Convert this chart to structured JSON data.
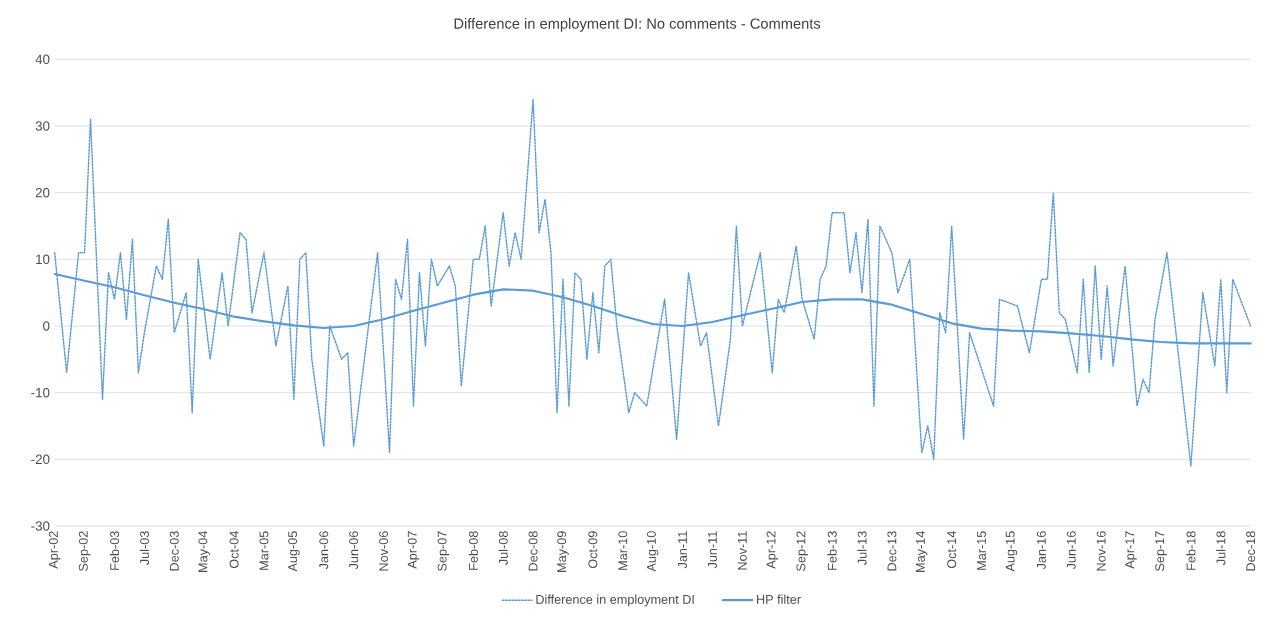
{
  "chart_data": {
    "type": "line",
    "title": "Difference in employment  DI: No comments - Comments",
    "xlim": [
      "2002-04",
      "2018-12"
    ],
    "ylim": [
      -30,
      40
    ],
    "yticks": [
      -30,
      -20,
      -10,
      0,
      10,
      20,
      30,
      40
    ],
    "xticks": [
      {
        "value": "2002-04",
        "label": "Apr-02"
      },
      {
        "value": "2002-09",
        "label": "Sep-02"
      },
      {
        "value": "2003-02",
        "label": "Feb-03"
      },
      {
        "value": "2003-07",
        "label": "Jul-03"
      },
      {
        "value": "2003-12",
        "label": "Dec-03"
      },
      {
        "value": "2004-05",
        "label": "May-04"
      },
      {
        "value": "2004-10",
        "label": "Oct-04"
      },
      {
        "value": "2005-03",
        "label": "Mar-05"
      },
      {
        "value": "2005-08",
        "label": "Aug-05"
      },
      {
        "value": "2006-01",
        "label": "Jan-06"
      },
      {
        "value": "2006-06",
        "label": "Jun-06"
      },
      {
        "value": "2006-11",
        "label": "Nov-06"
      },
      {
        "value": "2007-04",
        "label": "Apr-07"
      },
      {
        "value": "2007-09",
        "label": "Sep-07"
      },
      {
        "value": "2008-02",
        "label": "Feb-08"
      },
      {
        "value": "2008-07",
        "label": "Jul-08"
      },
      {
        "value": "2008-12",
        "label": "Dec-08"
      },
      {
        "value": "2009-05",
        "label": "May-09"
      },
      {
        "value": "2009-10",
        "label": "Oct-09"
      },
      {
        "value": "2010-03",
        "label": "Mar-10"
      },
      {
        "value": "2010-08",
        "label": "Aug-10"
      },
      {
        "value": "2011-01",
        "label": "Jan-11"
      },
      {
        "value": "2011-06",
        "label": "Jun-11"
      },
      {
        "value": "2011-11",
        "label": "Nov-11"
      },
      {
        "value": "2012-04",
        "label": "Apr-12"
      },
      {
        "value": "2012-09",
        "label": "Sep-12"
      },
      {
        "value": "2013-02",
        "label": "Feb-13"
      },
      {
        "value": "2013-07",
        "label": "Jul-13"
      },
      {
        "value": "2013-12",
        "label": "Dec-13"
      },
      {
        "value": "2014-05",
        "label": "May-14"
      },
      {
        "value": "2014-10",
        "label": "Oct-14"
      },
      {
        "value": "2015-03",
        "label": "Mar-15"
      },
      {
        "value": "2015-08",
        "label": "Aug-15"
      },
      {
        "value": "2016-01",
        "label": "Jan-16"
      },
      {
        "value": "2016-06",
        "label": "Jun-16"
      },
      {
        "value": "2016-11",
        "label": "Nov-16"
      },
      {
        "value": "2017-04",
        "label": "Apr-17"
      },
      {
        "value": "2017-09",
        "label": "Sep-17"
      },
      {
        "value": "2018-02",
        "label": "Feb-18"
      },
      {
        "value": "2018-07",
        "label": "Jul-18"
      },
      {
        "value": "2018-12",
        "label": "Dec-18"
      }
    ],
    "grid": "y",
    "legend": "bottom",
    "marker": "none",
    "series": [
      {
        "name": "Difference in employment DI",
        "color": "#5b9bd5",
        "line_style": "dotted",
        "x": [
          "2002-04",
          "2002-06",
          "2002-08",
          "2002-09",
          "2002-10",
          "2002-12",
          "2003-01",
          "2003-02",
          "2003-03",
          "2003-04",
          "2003-05",
          "2003-06",
          "2003-07",
          "2003-09",
          "2003-10",
          "2003-11",
          "2003-12",
          "2004-02",
          "2004-03",
          "2004-04",
          "2004-06",
          "2004-08",
          "2004-09",
          "2004-11",
          "2004-12",
          "2005-01",
          "2005-03",
          "2005-05",
          "2005-07",
          "2005-08",
          "2005-09",
          "2005-10",
          "2005-11",
          "2006-01",
          "2006-02",
          "2006-04",
          "2006-05",
          "2006-06",
          "2006-10",
          "2006-12",
          "2007-01",
          "2007-02",
          "2007-03",
          "2007-04",
          "2007-05",
          "2007-06",
          "2007-07",
          "2007-08",
          "2007-10",
          "2007-11",
          "2007-12",
          "2008-02",
          "2008-03",
          "2008-04",
          "2008-05",
          "2008-07",
          "2008-08",
          "2008-09",
          "2008-10",
          "2008-12",
          "2009-01",
          "2009-02",
          "2009-03",
          "2009-04",
          "2009-05",
          "2009-06",
          "2009-07",
          "2009-08",
          "2009-09",
          "2009-10",
          "2009-11",
          "2009-12",
          "2010-01",
          "2010-02",
          "2010-04",
          "2010-05",
          "2010-07",
          "2010-10",
          "2010-12",
          "2011-02",
          "2011-04",
          "2011-05",
          "2011-07",
          "2011-09",
          "2011-10",
          "2011-11",
          "2012-02",
          "2012-04",
          "2012-05",
          "2012-06",
          "2012-08",
          "2012-09",
          "2012-11",
          "2012-12",
          "2013-01",
          "2013-02",
          "2013-04",
          "2013-05",
          "2013-06",
          "2013-07",
          "2013-08",
          "2013-09",
          "2013-10",
          "2013-12",
          "2014-01",
          "2014-03",
          "2014-05",
          "2014-06",
          "2014-07",
          "2014-08",
          "2014-09",
          "2014-10",
          "2014-12",
          "2015-01",
          "2015-05",
          "2015-06",
          "2015-09",
          "2015-11",
          "2016-01",
          "2016-02",
          "2016-03",
          "2016-04",
          "2016-05",
          "2016-07",
          "2016-08",
          "2016-09",
          "2016-10",
          "2016-11",
          "2016-12",
          "2017-01",
          "2017-03",
          "2017-05",
          "2017-06",
          "2017-07",
          "2017-08",
          "2017-10",
          "2018-02",
          "2018-04",
          "2018-06",
          "2018-07",
          "2018-08",
          "2018-09",
          "2018-12"
        ],
        "values": [
          11,
          -7,
          11,
          11,
          31,
          -11,
          8,
          4,
          11,
          1,
          13,
          -7,
          -1,
          9,
          7,
          16,
          -1,
          5,
          -13,
          10,
          -5,
          8,
          0,
          14,
          13,
          2,
          11,
          -3,
          6,
          -11,
          10,
          11,
          -5,
          -18,
          0,
          -5,
          -4,
          -18,
          11,
          -19,
          7,
          4,
          13,
          -12,
          8,
          -3,
          10,
          6,
          9,
          6,
          -9,
          10,
          10,
          15,
          3,
          17,
          9,
          14,
          10,
          34,
          14,
          19,
          11,
          -13,
          7,
          -12,
          8,
          7,
          -5,
          5,
          -4,
          9,
          10,
          0,
          -13,
          -10,
          -12,
          4,
          -17,
          8,
          -3,
          -1,
          -15,
          -2,
          15,
          0,
          11,
          -7,
          4,
          2,
          12,
          4,
          -2,
          7,
          9,
          17,
          17,
          8,
          14,
          5,
          16,
          -12,
          15,
          11,
          5,
          10,
          -19,
          -15,
          -20,
          2,
          -1,
          15,
          -17,
          -1,
          -12,
          4,
          3,
          -4,
          7,
          7,
          20,
          2,
          1,
          -7,
          7,
          -7,
          9,
          -5,
          6,
          -6,
          9,
          -12,
          -8,
          -10,
          1,
          11,
          -21,
          5,
          -6,
          7,
          -10,
          7,
          0
        ]
      },
      {
        "name": "HP filter",
        "color": "#5b9bd5",
        "line_style": "solid",
        "x": [
          "2002-04",
          "2002-09",
          "2003-02",
          "2003-07",
          "2003-12",
          "2004-05",
          "2004-10",
          "2005-03",
          "2005-08",
          "2006-01",
          "2006-06",
          "2006-11",
          "2007-04",
          "2007-09",
          "2008-02",
          "2008-07",
          "2008-12",
          "2009-05",
          "2009-10",
          "2010-03",
          "2010-08",
          "2011-01",
          "2011-06",
          "2011-11",
          "2012-04",
          "2012-09",
          "2013-02",
          "2013-07",
          "2013-12",
          "2014-05",
          "2014-10",
          "2015-03",
          "2015-08",
          "2016-01",
          "2016-06",
          "2016-11",
          "2017-04",
          "2017-09",
          "2018-02",
          "2018-07",
          "2018-12"
        ],
        "values": [
          7.8,
          6.8,
          5.8,
          4.6,
          3.5,
          2.5,
          1.4,
          0.7,
          0.1,
          -0.3,
          0,
          1,
          2.3,
          3.5,
          4.7,
          5.5,
          5.3,
          4.3,
          3,
          1.5,
          0.3,
          0,
          0.6,
          1.6,
          2.6,
          3.6,
          4,
          4,
          3.2,
          1.8,
          0.4,
          -0.4,
          -0.7,
          -0.8,
          -1.1,
          -1.5,
          -2,
          -2.4,
          -2.6,
          -2.6,
          -2.6
        ]
      }
    ]
  }
}
